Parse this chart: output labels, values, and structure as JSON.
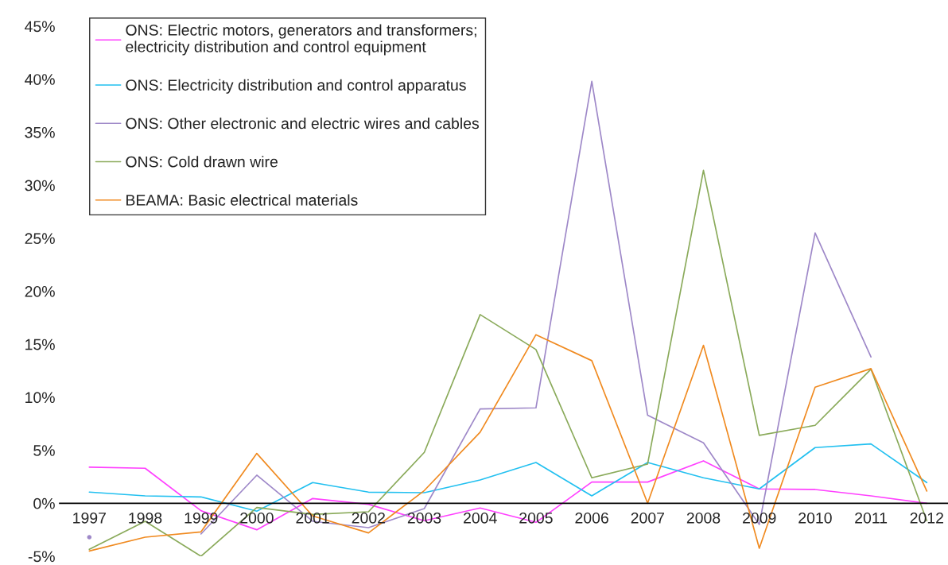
{
  "chart_data": {
    "type": "line",
    "categories": [
      "1997",
      "1998",
      "1999",
      "2000",
      "2001",
      "2002",
      "2003",
      "2004",
      "2005",
      "2006",
      "2007",
      "2008",
      "2009",
      "2010",
      "2011",
      "2012"
    ],
    "series": [
      {
        "name": "ONS: Electric motors, generators and transformers;\nelectricity distribution and control equipment",
        "color": "#ff40ff",
        "values": [
          3.4,
          3.3,
          -0.7,
          -2.5,
          0.45,
          -0.1,
          -1.65,
          -0.45,
          -1.8,
          2.0,
          2.0,
          4.0,
          1.35,
          1.3,
          0.7,
          0
        ]
      },
      {
        "name": "ONS: Electricity distribution and control apparatus",
        "color": "#22c0f0",
        "values": [
          1.05,
          0.7,
          0.6,
          -0.75,
          1.95,
          1.05,
          1.0,
          2.2,
          3.85,
          0.7,
          3.85,
          2.4,
          1.35,
          5.25,
          5.6,
          1.95
        ]
      },
      {
        "name": "ONS: Other electronic and electric wires and cables",
        "color": "#9e88c8",
        "values": [
          -3.2,
          null,
          -2.9,
          2.65,
          -1.7,
          -2.3,
          -0.5,
          8.9,
          9.0,
          39.8,
          8.3,
          5.7,
          -2.0,
          25.5,
          13.8,
          null
        ]
      },
      {
        "name": "ONS: Cold drawn wire",
        "color": "#8aaa5a",
        "values": [
          -4.35,
          -1.7,
          -5.0,
          -0.4,
          -1.05,
          -0.8,
          4.8,
          17.8,
          14.5,
          2.4,
          3.7,
          31.4,
          6.4,
          7.35,
          12.65,
          -1.65
        ]
      },
      {
        "name": "BEAMA: Basic electrical materials",
        "color": "#f08a20",
        "values": [
          -4.5,
          -3.2,
          -2.7,
          4.7,
          -1.2,
          -2.8,
          1.2,
          6.7,
          15.9,
          13.45,
          0,
          14.9,
          -4.25,
          10.95,
          12.7,
          1.15
        ]
      }
    ],
    "ylim": [
      -5,
      45
    ],
    "yticks": [
      {
        "value": -5,
        "label": "-5%"
      },
      {
        "value": 0,
        "label": "0%"
      },
      {
        "value": 5,
        "label": "5%"
      },
      {
        "value": 10,
        "label": "10%"
      },
      {
        "value": 15,
        "label": "15%"
      },
      {
        "value": 20,
        "label": "20%"
      },
      {
        "value": 25,
        "label": "25%"
      },
      {
        "value": 30,
        "label": "30%"
      },
      {
        "value": 35,
        "label": "35%"
      },
      {
        "value": 40,
        "label": "40%"
      },
      {
        "value": 45,
        "label": "45%"
      }
    ],
    "grid": false,
    "legend": "top left",
    "marker": "none",
    "line_style": "solid"
  }
}
